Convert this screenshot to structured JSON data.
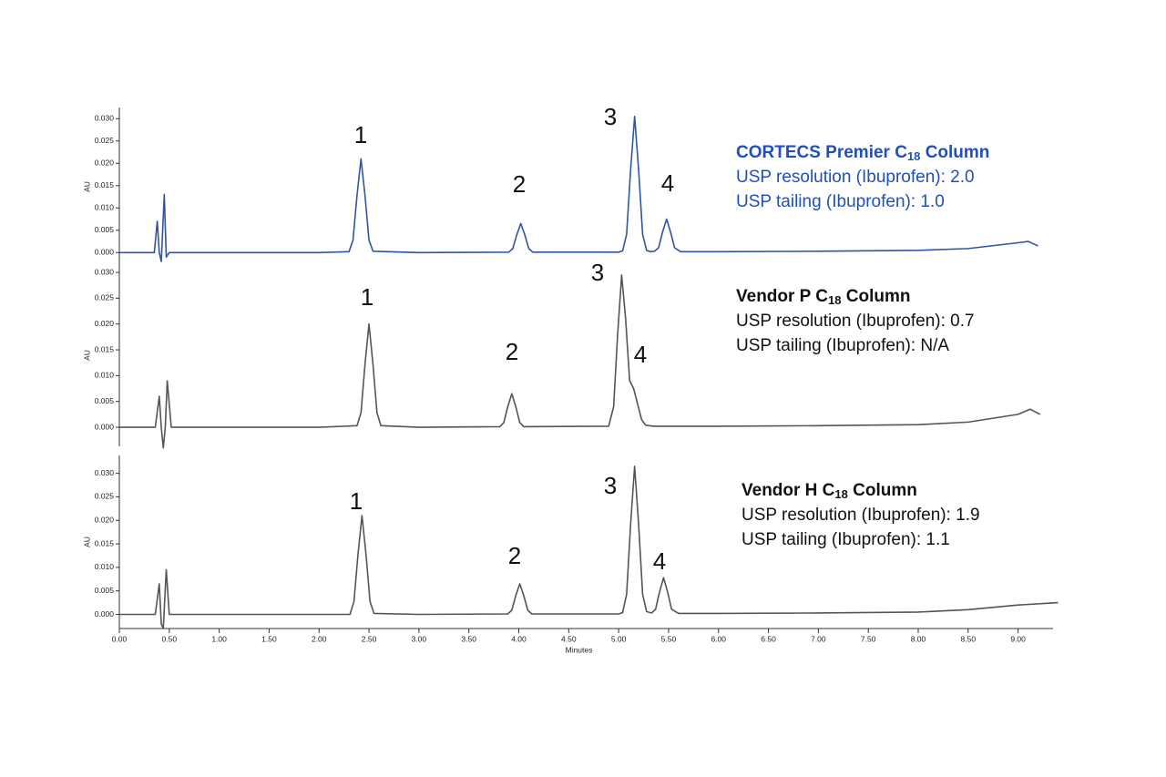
{
  "chart_data": [
    {
      "type": "line",
      "color": "#2f55a8",
      "text_color": "#1f4fbf",
      "legend": {
        "title": {
          "text": "CORTECS Premier C",
          "sub": "18",
          "tail": " Column"
        },
        "lines": [
          "USP resolution (Ibuprofen): 2.0",
          "USP tailing (Ibuprofen): 1.0"
        ]
      },
      "peak_labels": [
        "1",
        "2",
        "3",
        "4"
      ],
      "ylabel": "AU",
      "xlim": [
        0,
        9.35
      ],
      "ylim": [
        -0.003,
        0.0325
      ],
      "yticks": [
        {
          "value": 0,
          "label": "0.000"
        },
        {
          "value": 0.005,
          "label": "0.005"
        },
        {
          "value": 0.01,
          "label": "0.010"
        },
        {
          "value": 0.015,
          "label": "0.015"
        },
        {
          "value": 0.02,
          "label": "0.020"
        },
        {
          "value": 0.025,
          "label": "0.025"
        },
        {
          "value": 0.03,
          "label": "0.030"
        }
      ],
      "x": [
        0,
        0.35,
        0.38,
        0.4,
        0.42,
        0.45,
        0.47,
        0.5,
        1.0,
        2.0,
        2.3,
        2.34,
        2.38,
        2.42,
        2.46,
        2.5,
        2.54,
        3.0,
        3.9,
        3.94,
        3.98,
        4.02,
        4.06,
        4.1,
        4.14,
        5.0,
        5.04,
        5.08,
        5.12,
        5.16,
        5.2,
        5.24,
        5.28,
        5.32,
        5.36,
        5.4,
        5.44,
        5.48,
        5.52,
        5.56,
        5.62,
        6.0,
        7.0,
        8.0,
        8.5,
        9.0,
        9.1,
        9.2
      ],
      "values": [
        0,
        0,
        0.007,
        0,
        -0.002,
        0.013,
        -0.001,
        0,
        0,
        0,
        0.0002,
        0.0028,
        0.0128,
        0.021,
        0.0128,
        0.0028,
        0.0003,
        0,
        0.0001,
        0.0009,
        0.004,
        0.0065,
        0.004,
        0.0009,
        0.0001,
        0.0001,
        0.0004,
        0.0041,
        0.0186,
        0.0305,
        0.0186,
        0.0041,
        0.0005,
        0.0002,
        0.0003,
        0.0011,
        0.0046,
        0.0075,
        0.0046,
        0.0011,
        0.0002,
        0.0002,
        0.0003,
        0.0005,
        0.0009,
        0.0022,
        0.0025,
        0.0015
      ]
    },
    {
      "type": "line",
      "color": "#555555",
      "text_color": "#111111",
      "legend": {
        "title": {
          "text": "Vendor P C",
          "sub": "18",
          "tail": " Column"
        },
        "lines": [
          "USP resolution (Ibuprofen): 0.7",
          "USP tailing (Ibuprofen): N/A"
        ]
      },
      "peak_labels": [
        "1",
        "2",
        "3",
        "4"
      ],
      "ylabel": "AU",
      "xlim": [
        0,
        9.35
      ],
      "ylim": [
        -0.0037,
        0.0316
      ],
      "yticks": [
        {
          "value": 0,
          "label": "0.000"
        },
        {
          "value": 0.005,
          "label": "0.005"
        },
        {
          "value": 0.01,
          "label": "0.010"
        },
        {
          "value": 0.015,
          "label": "0.015"
        },
        {
          "value": 0.02,
          "label": "0.020"
        },
        {
          "value": 0.025,
          "label": "0.025"
        },
        {
          "value": 0.03,
          "label": "0.030"
        }
      ],
      "x": [
        0,
        0.36,
        0.4,
        0.42,
        0.44,
        0.46,
        0.48,
        0.52,
        1.0,
        2.0,
        2.38,
        2.42,
        2.46,
        2.5,
        2.54,
        2.58,
        2.62,
        3.0,
        3.81,
        3.85,
        3.89,
        3.93,
        3.97,
        4.01,
        4.05,
        4.9,
        4.95,
        4.99,
        5.03,
        5.07,
        5.11,
        5.15,
        5.19,
        5.23,
        5.27,
        5.35,
        6.0,
        7.0,
        8.0,
        8.5,
        9.0,
        9.12,
        9.22
      ],
      "values": [
        0,
        0,
        0.006,
        0,
        -0.004,
        0,
        0.009,
        0,
        0,
        0,
        0.0003,
        0.0028,
        0.0122,
        0.02,
        0.0122,
        0.0028,
        0.0003,
        0,
        0.0001,
        0.0009,
        0.004,
        0.0065,
        0.004,
        0.0009,
        0.0001,
        0.0002,
        0.004,
        0.018,
        0.0295,
        0.021,
        0.009,
        0.0075,
        0.0045,
        0.0015,
        0.0004,
        0.0002,
        0.0002,
        0.0003,
        0.0005,
        0.001,
        0.0025,
        0.0035,
        0.0025
      ]
    },
    {
      "type": "line",
      "color": "#555555",
      "text_color": "#111111",
      "legend": {
        "title": {
          "text": "Vendor H C",
          "sub": "18",
          "tail": " Column"
        },
        "lines": [
          "USP resolution (Ibuprofen): 1.9",
          "USP tailing (Ibuprofen): 1.1"
        ]
      },
      "peak_labels": [
        "1",
        "2",
        "3",
        "4"
      ],
      "ylabel": "AU",
      "xlabel": "Minutes",
      "xlim": [
        0,
        9.35
      ],
      "ylim": [
        -0.003,
        0.0338
      ],
      "yticks": [
        {
          "value": 0,
          "label": "0.000"
        },
        {
          "value": 0.005,
          "label": "0.005"
        },
        {
          "value": 0.01,
          "label": "0.010"
        },
        {
          "value": 0.015,
          "label": "0.015"
        },
        {
          "value": 0.02,
          "label": "0.020"
        },
        {
          "value": 0.025,
          "label": "0.025"
        },
        {
          "value": 0.03,
          "label": "0.030"
        }
      ],
      "xticks": [
        {
          "value": 0,
          "label": "0.00"
        },
        {
          "value": 0.5,
          "label": "0.50"
        },
        {
          "value": 1,
          "label": "1.00"
        },
        {
          "value": 1.5,
          "label": "1.50"
        },
        {
          "value": 2,
          "label": "2.00"
        },
        {
          "value": 2.5,
          "label": "2.50"
        },
        {
          "value": 3,
          "label": "3.00"
        },
        {
          "value": 3.5,
          "label": "3.50"
        },
        {
          "value": 4,
          "label": "4.00"
        },
        {
          "value": 4.5,
          "label": "4.50"
        },
        {
          "value": 5,
          "label": "5.00"
        },
        {
          "value": 5.5,
          "label": "5.50"
        },
        {
          "value": 6,
          "label": "6.00"
        },
        {
          "value": 6.5,
          "label": "6.50"
        },
        {
          "value": 7,
          "label": "7.00"
        },
        {
          "value": 7.5,
          "label": "7.50"
        },
        {
          "value": 8,
          "label": "8.00"
        },
        {
          "value": 8.5,
          "label": "8.50"
        },
        {
          "value": 9,
          "label": "9.00"
        }
      ],
      "x": [
        0,
        0.36,
        0.4,
        0.42,
        0.44,
        0.47,
        0.5,
        1.0,
        2.0,
        2.31,
        2.35,
        2.39,
        2.43,
        2.47,
        2.51,
        2.55,
        3.0,
        3.89,
        3.93,
        3.97,
        4.01,
        4.05,
        4.09,
        4.13,
        5.0,
        5.04,
        5.08,
        5.12,
        5.16,
        5.2,
        5.24,
        5.28,
        5.33,
        5.37,
        5.41,
        5.45,
        5.49,
        5.53,
        5.6,
        6.0,
        7.0,
        8.0,
        8.5,
        9.0,
        9.4
      ],
      "values": [
        0,
        0,
        0.0065,
        -0.002,
        -0.003,
        0.0095,
        0,
        0,
        0,
        0,
        0.0028,
        0.0128,
        0.021,
        0.0128,
        0.0028,
        0.0002,
        0,
        0.0001,
        0.0009,
        0.004,
        0.0065,
        0.004,
        0.0009,
        0.0001,
        0.0001,
        0.0004,
        0.0043,
        0.0192,
        0.0315,
        0.0192,
        0.0043,
        0.0006,
        0.0003,
        0.0011,
        0.0048,
        0.0078,
        0.0048,
        0.0011,
        0.0002,
        0.0002,
        0.0003,
        0.0005,
        0.001,
        0.002,
        0.0025
      ]
    }
  ]
}
